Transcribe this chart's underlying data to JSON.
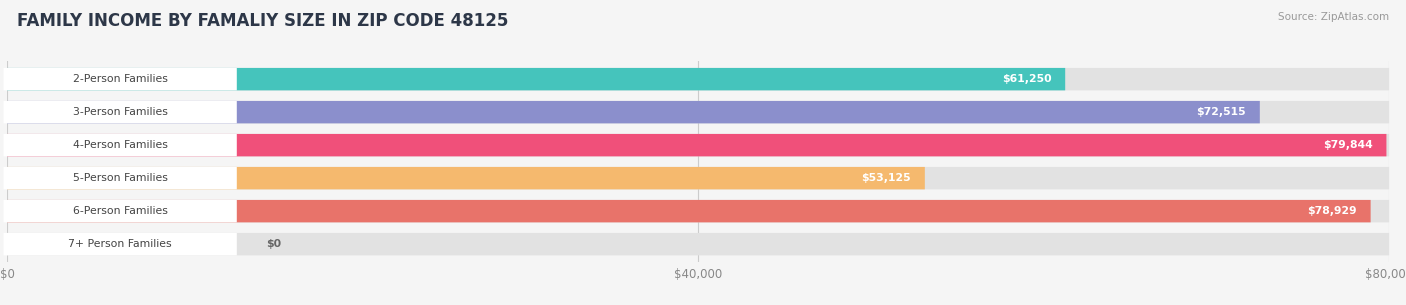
{
  "title": "FAMILY INCOME BY FAMALIY SIZE IN ZIP CODE 48125",
  "source": "Source: ZipAtlas.com",
  "categories": [
    "2-Person Families",
    "3-Person Families",
    "4-Person Families",
    "5-Person Families",
    "6-Person Families",
    "7+ Person Families"
  ],
  "values": [
    61250,
    72515,
    79844,
    53125,
    78929,
    0
  ],
  "bar_colors": [
    "#45c4bc",
    "#8b8fcc",
    "#f0507a",
    "#f5b96e",
    "#e8736a",
    "#a8c8e8"
  ],
  "value_labels": [
    "$61,250",
    "$72,515",
    "$79,844",
    "$53,125",
    "$78,929",
    "$0"
  ],
  "xlim": [
    0,
    80000
  ],
  "xticks": [
    0,
    40000,
    80000
  ],
  "xtick_labels": [
    "$0",
    "$40,000",
    "$80,000"
  ],
  "background_color": "#f5f5f5",
  "bar_bg_color": "#e2e2e2",
  "title_color": "#2d3748",
  "title_fontsize": 12,
  "bar_height": 0.68,
  "fig_width": 14.06,
  "fig_height": 3.05
}
